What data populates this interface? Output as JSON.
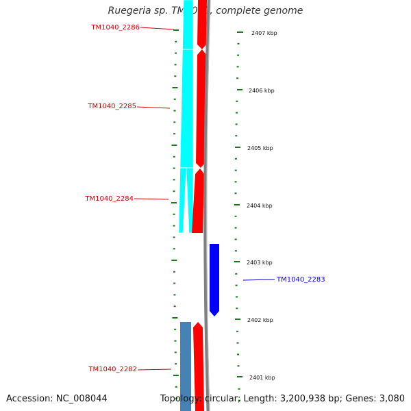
{
  "title": "Ruegeria sp. TM1040, complete genome",
  "footer": {
    "accession": "Accession: NC_008044",
    "summary": "Topology: circular; Length: 3,200,938 bp; Genes: 3,080"
  },
  "scale": {
    "unit": "kbp",
    "ticks": [
      {
        "kbp": 2407,
        "label": "2407 kbp"
      },
      {
        "kbp": 2406,
        "label": "2406 kbp"
      },
      {
        "kbp": 2405,
        "label": "2405 kbp"
      },
      {
        "kbp": 2404,
        "label": "2404 kbp"
      },
      {
        "kbp": 2403,
        "label": "2403 kbp"
      },
      {
        "kbp": 2402,
        "label": "2402 kbp"
      },
      {
        "kbp": 2401,
        "label": "2401 kbp"
      }
    ]
  },
  "genes": [
    {
      "id": "TM1040_2286",
      "label": "TM1040_2286",
      "strand": "forward",
      "color": "#ff0000"
    },
    {
      "id": "TM1040_2285",
      "label": "TM1040_2285",
      "strand": "forward",
      "color": "#ff0000"
    },
    {
      "id": "TM1040_2284",
      "label": "TM1040_2284",
      "strand": "forward",
      "color": "#ff0000"
    },
    {
      "id": "TM1040_2283",
      "label": "TM1040_2283",
      "strand": "reverse",
      "color": "#0000ff"
    },
    {
      "id": "TM1040_2282",
      "label": "TM1040_2282",
      "strand": "forward",
      "color": "#ff0000"
    }
  ],
  "colors": {
    "forward_gene": "#ff0000",
    "reverse_gene": "#0000ff",
    "forward_label": "#cc0000",
    "reverse_label": "#0000cc",
    "cds_feature": "#00ffff",
    "other_feature": "#4682b4",
    "backbone": "#808080",
    "ticks": "#1a7a1a"
  }
}
